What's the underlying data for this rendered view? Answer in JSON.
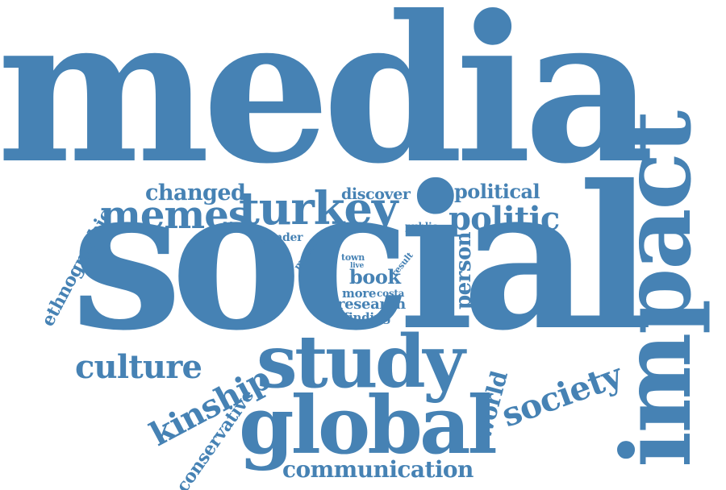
{
  "color": "#4682b4",
  "words": [
    {
      "id": "media",
      "text": "media"
    },
    {
      "id": "social",
      "text": "social"
    },
    {
      "id": "impact",
      "text": "impact"
    },
    {
      "id": "study",
      "text": "study"
    },
    {
      "id": "global",
      "text": "global"
    },
    {
      "id": "memes",
      "text": "memes"
    },
    {
      "id": "turkey",
      "text": "turkey"
    },
    {
      "id": "politic",
      "text": "politic"
    },
    {
      "id": "political",
      "text": "political"
    },
    {
      "id": "changed",
      "text": "changed"
    },
    {
      "id": "discover",
      "text": "discover"
    },
    {
      "id": "public",
      "text": "public"
    },
    {
      "id": "gender",
      "text": "gender"
    },
    {
      "id": "month",
      "text": "month"
    },
    {
      "id": "town",
      "text": "town"
    },
    {
      "id": "live",
      "text": "live"
    },
    {
      "id": "result",
      "text": "result"
    },
    {
      "id": "book",
      "text": "book"
    },
    {
      "id": "more",
      "text": "more"
    },
    {
      "id": "costa",
      "text": "costa"
    },
    {
      "id": "research",
      "text": "research"
    },
    {
      "id": "finding",
      "text": "finding"
    },
    {
      "id": "person",
      "text": "person"
    },
    {
      "id": "ethnographic",
      "text": "ethnographic"
    },
    {
      "id": "culture",
      "text": "culture"
    },
    {
      "id": "kinship",
      "text": "kinship"
    },
    {
      "id": "conservative",
      "text": "conservative"
    },
    {
      "id": "communication",
      "text": "communication"
    },
    {
      "id": "society",
      "text": "society"
    },
    {
      "id": "world",
      "text": "world"
    }
  ]
}
